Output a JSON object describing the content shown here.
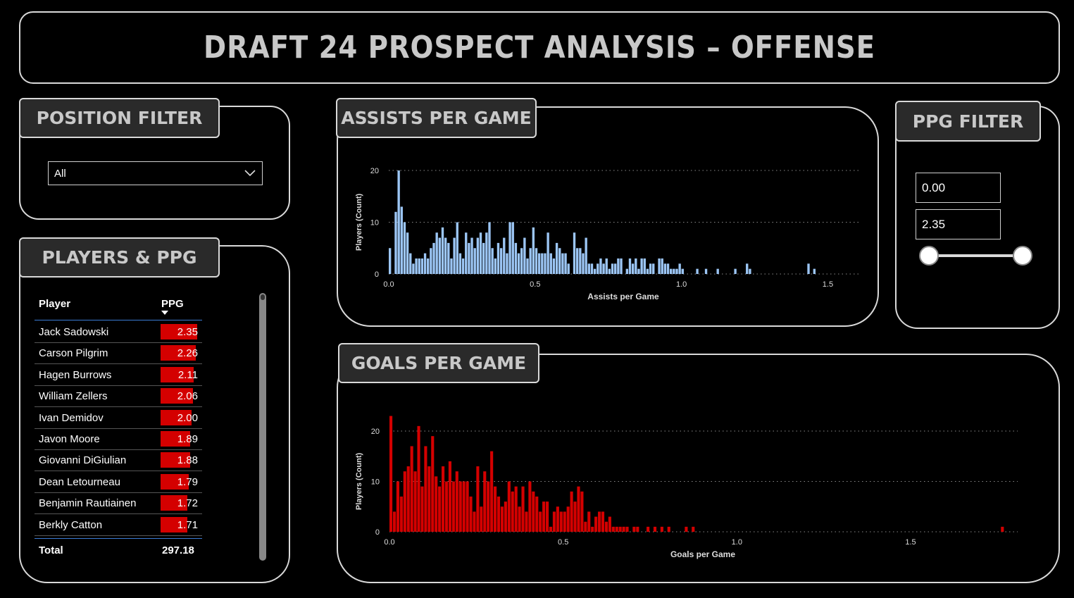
{
  "header": {
    "title": "DRAFT 24 PROSPECT ANALYSIS –  OFFENSE"
  },
  "position_filter": {
    "title": "POSITION FILTER",
    "selected": "All",
    "icon": "chevron-down-icon"
  },
  "players_table": {
    "title": "PLAYERS & PPG",
    "columns": [
      "Player",
      "PPG"
    ],
    "rows": [
      {
        "player": "Jack Sadowski",
        "ppg": "2.35"
      },
      {
        "player": "Carson Pilgrim",
        "ppg": "2.26"
      },
      {
        "player": "Hagen Burrows",
        "ppg": "2.11"
      },
      {
        "player": "William Zellers",
        "ppg": "2.06"
      },
      {
        "player": "Ivan Demidov",
        "ppg": "2.00"
      },
      {
        "player": "Javon Moore",
        "ppg": "1.89"
      },
      {
        "player": "Giovanni DiGiulian",
        "ppg": "1.88"
      },
      {
        "player": "Dean Letourneau",
        "ppg": "1.79"
      },
      {
        "player": "Benjamin Rautiainen",
        "ppg": "1.72"
      },
      {
        "player": "Berkly Catton",
        "ppg": "1.71"
      }
    ],
    "total_label": "Total",
    "total_value": "297.18",
    "bar_color": "#d40000"
  },
  "ppg_filter": {
    "title": "PPG FILTER",
    "min": "0.00",
    "max": "2.35"
  },
  "colors": {
    "assist_bar": "#9cc6f5",
    "goal_bar": "#d40000",
    "panel_border": "#d9d9d9",
    "tab_bg": "#2a2a2a"
  },
  "chart_data": [
    {
      "type": "bar",
      "title": "ASSISTS PER GAME",
      "xlabel": "Assists per Game",
      "ylabel": "Players (Count)",
      "xlim": [
        0,
        1.6
      ],
      "ylim": [
        0,
        20
      ],
      "xticks": [
        "0.0",
        "0.5",
        "1.0",
        "1.5"
      ],
      "yticks": [
        "0",
        "10",
        "20"
      ],
      "grid": true,
      "bin_width": 0.01,
      "x": [
        0.0,
        0.01,
        0.02,
        0.03,
        0.04,
        0.05,
        0.06,
        0.07,
        0.08,
        0.09,
        0.1,
        0.11,
        0.12,
        0.13,
        0.14,
        0.15,
        0.16,
        0.17,
        0.18,
        0.19,
        0.2,
        0.21,
        0.22,
        0.23,
        0.24,
        0.25,
        0.26,
        0.27,
        0.28,
        0.29,
        0.3,
        0.31,
        0.32,
        0.33,
        0.34,
        0.35,
        0.36,
        0.37,
        0.38,
        0.39,
        0.4,
        0.41,
        0.42,
        0.43,
        0.44,
        0.45,
        0.46,
        0.47,
        0.48,
        0.49,
        0.5,
        0.51,
        0.52,
        0.53,
        0.54,
        0.55,
        0.56,
        0.57,
        0.58,
        0.59,
        0.6,
        0.61,
        0.62,
        0.63,
        0.64,
        0.65,
        0.66,
        0.67,
        0.68,
        0.69,
        0.7,
        0.71,
        0.72,
        0.73,
        0.74,
        0.75,
        0.76,
        0.77,
        0.78,
        0.79,
        0.8,
        0.81,
        0.82,
        0.83,
        0.84,
        0.85,
        0.86,
        0.87,
        0.88,
        0.89,
        0.9,
        0.91,
        0.92,
        0.93,
        0.94,
        0.95,
        0.96,
        0.97,
        0.98,
        0.99,
        1.0,
        1.05,
        1.08,
        1.12,
        1.18,
        1.22,
        1.23,
        1.43,
        1.45
      ],
      "values": [
        5,
        0,
        12,
        20,
        13,
        10,
        8,
        4,
        2,
        3,
        3,
        3,
        4,
        3,
        5,
        6,
        8,
        7,
        9,
        7,
        6,
        3,
        7,
        10,
        4,
        3,
        8,
        6,
        7,
        5,
        7,
        8,
        6,
        8,
        10,
        5,
        3,
        6,
        5,
        7,
        4,
        10,
        10,
        6,
        4,
        5,
        7,
        3,
        5,
        9,
        5,
        4,
        4,
        4,
        8,
        4,
        3,
        6,
        5,
        4,
        4,
        2,
        0,
        8,
        5,
        5,
        4,
        7,
        2,
        2,
        1,
        2,
        3,
        2,
        3,
        1,
        2,
        2,
        3,
        3,
        0,
        1,
        3,
        2,
        3,
        1,
        3,
        3,
        1,
        2,
        2,
        0,
        3,
        3,
        2,
        2,
        1,
        1,
        1,
        2,
        1,
        1,
        1,
        1,
        1,
        2,
        1,
        2,
        1
      ],
      "color": "#9cc6f5"
    },
    {
      "type": "bar",
      "title": "GOALS PER GAME",
      "xlabel": "Goals per Game",
      "ylabel": "Players (Count)",
      "xlim": [
        0,
        1.8
      ],
      "ylim": [
        0,
        20
      ],
      "xticks": [
        "0.0",
        "0.5",
        "1.0",
        "1.5"
      ],
      "yticks": [
        "0",
        "10",
        "20"
      ],
      "grid": true,
      "bin_width": 0.01,
      "x": [
        0.0,
        0.01,
        0.02,
        0.03,
        0.04,
        0.05,
        0.06,
        0.07,
        0.08,
        0.09,
        0.1,
        0.11,
        0.12,
        0.13,
        0.14,
        0.15,
        0.16,
        0.17,
        0.18,
        0.19,
        0.2,
        0.21,
        0.22,
        0.23,
        0.24,
        0.25,
        0.26,
        0.27,
        0.28,
        0.29,
        0.3,
        0.31,
        0.32,
        0.33,
        0.34,
        0.35,
        0.36,
        0.37,
        0.38,
        0.39,
        0.4,
        0.41,
        0.42,
        0.43,
        0.44,
        0.45,
        0.46,
        0.47,
        0.48,
        0.49,
        0.5,
        0.51,
        0.52,
        0.53,
        0.54,
        0.55,
        0.56,
        0.57,
        0.58,
        0.59,
        0.6,
        0.61,
        0.62,
        0.63,
        0.64,
        0.65,
        0.66,
        0.67,
        0.68,
        0.69,
        0.7,
        0.71,
        0.72,
        0.73,
        0.74,
        0.75,
        0.76,
        0.77,
        0.78,
        0.79,
        0.8,
        0.81,
        0.82,
        0.83,
        0.84,
        0.85,
        0.86,
        0.87,
        0.88,
        0.89,
        0.9,
        0.91,
        0.92,
        0.93,
        0.94,
        0.95,
        0.96,
        0.97,
        0.98,
        0.99,
        1.0,
        1.01,
        1.02,
        1.03,
        1.04,
        1.05,
        1.06,
        1.07,
        1.08,
        1.09,
        1.1,
        1.11,
        1.12,
        1.13,
        1.14,
        1.15,
        1.16,
        1.17,
        1.18,
        1.19,
        1.2,
        1.21,
        1.22,
        1.23,
        1.24,
        1.25,
        1.26,
        1.27,
        1.28,
        1.29,
        1.3,
        1.31,
        1.32,
        1.33,
        1.34,
        1.35,
        1.36,
        1.37,
        1.38,
        1.39,
        1.4,
        1.41,
        1.42,
        1.43,
        1.44,
        1.45,
        1.46,
        1.47,
        1.48,
        1.49,
        1.5,
        1.51,
        1.52,
        1.53,
        1.54,
        1.55,
        1.56,
        1.57,
        1.58,
        1.59,
        1.6,
        1.61,
        1.62,
        1.63,
        1.64,
        1.65,
        1.66,
        1.67,
        1.68,
        1.69,
        1.7,
        1.71,
        1.72,
        1.73,
        1.74,
        1.75,
        1.76
      ],
      "values": [
        23,
        4,
        10,
        7,
        12,
        13,
        17,
        12,
        21,
        9,
        17,
        13,
        19,
        11,
        9,
        13,
        10,
        14,
        10,
        12,
        10,
        10,
        10,
        7,
        4,
        13,
        5,
        12,
        10,
        16,
        9,
        7,
        5,
        6,
        10,
        8,
        9,
        5,
        9,
        4,
        10,
        8,
        7,
        4,
        6,
        6,
        1,
        4,
        5,
        4,
        4,
        5,
        8,
        6,
        9,
        8,
        2,
        4,
        1,
        3,
        4,
        4,
        2,
        3,
        1,
        1,
        1,
        1,
        1,
        0,
        1,
        1,
        0,
        0,
        1,
        0,
        1,
        0,
        1,
        0,
        1,
        0,
        0,
        0,
        0,
        1,
        0,
        1,
        0,
        0,
        0,
        0,
        0,
        0,
        0,
        0,
        0,
        0,
        0,
        0,
        0,
        0,
        0,
        0,
        0,
        0,
        0,
        0,
        0,
        0,
        0,
        0,
        0,
        0,
        0,
        0,
        0,
        0,
        0,
        0,
        0,
        0,
        0,
        0,
        0,
        0,
        0,
        0,
        0,
        0,
        0,
        0,
        0,
        0,
        0,
        0,
        0,
        0,
        0,
        0,
        0,
        0,
        0,
        0,
        0,
        0,
        0,
        0,
        0,
        0,
        0,
        0,
        0,
        0,
        0,
        0,
        0,
        0,
        0,
        0,
        0,
        0,
        0,
        0,
        0,
        0,
        0,
        0,
        0,
        0,
        0,
        0,
        0,
        0,
        0,
        0,
        1
      ],
      "color": "#d40000"
    }
  ]
}
